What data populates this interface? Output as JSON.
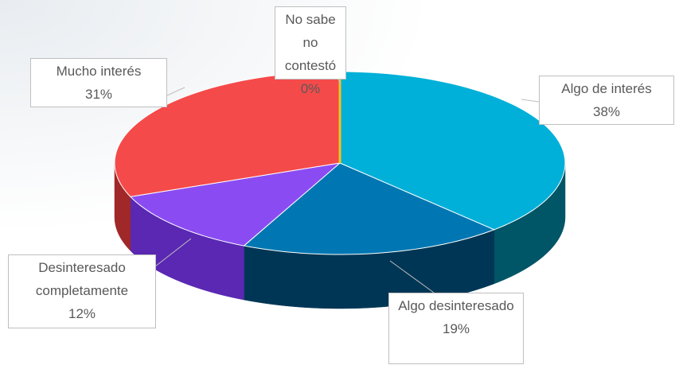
{
  "chart_data": {
    "type": "pie",
    "categories": [
      "Algo de interés",
      "Algo desinteresado",
      "Desinteresado completamente",
      "Mucho interés",
      "No sabe no contestó"
    ],
    "values": [
      38,
      19,
      12,
      31,
      0
    ],
    "value_labels": [
      "38%",
      "19%",
      "12%",
      "31%",
      "0%"
    ],
    "colors": [
      "#00b0d8",
      "#0077b2",
      "#8a4cf2",
      "#f54a4a",
      "#f2c21a"
    ],
    "side_colors": [
      "#005566",
      "#003655",
      "#5a28b2",
      "#a02828",
      "#a07a00"
    ],
    "start_angle": -90,
    "direction": "clockwise",
    "three_d": true
  }
}
